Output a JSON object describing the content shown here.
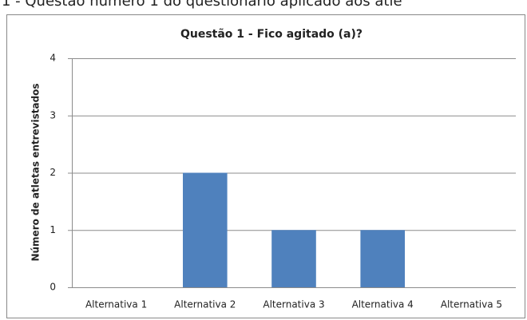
{
  "caption": "1 - Questão número 1 do questionário aplicado aos atle",
  "chart_data": {
    "type": "bar",
    "title": "Questão 1 - Fico agitado (a)?",
    "y_label": "Número de atletas entrevistados",
    "categories": [
      "Alternativa 1",
      "Alternativa 2",
      "Alternativa 3",
      "Alternativa 4",
      "Alternativa 5"
    ],
    "values": [
      0,
      2,
      1,
      1,
      0
    ],
    "color": "#4f81bd",
    "ylim": [
      0,
      4
    ],
    "yticks": [
      0,
      1,
      2,
      3,
      4
    ],
    "grid": true
  }
}
